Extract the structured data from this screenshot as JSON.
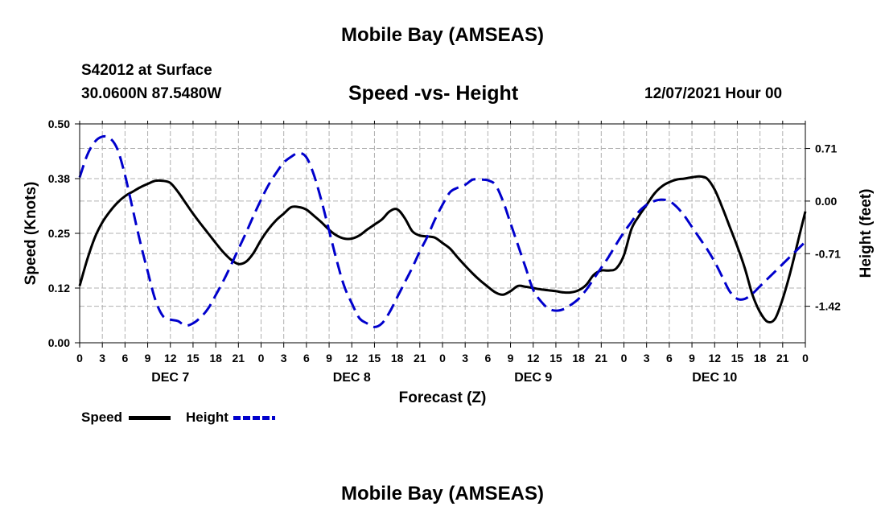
{
  "header": {
    "title": "Mobile Bay (AMSEAS)",
    "station": "S42012 at Surface",
    "coords": "30.0600N  87.5480W",
    "subtitle": "Speed -vs- Height",
    "datetime": "12/07/2021 Hour 00"
  },
  "footer": {
    "title": "Mobile Bay (AMSEAS)"
  },
  "legend": {
    "speed_label": "Speed",
    "height_label": "Height"
  },
  "colors": {
    "speed": "#000000",
    "height": "#0000cc",
    "grid": "#b0b0b0"
  },
  "chart_data": {
    "type": "line",
    "title": "Speed -vs- Height",
    "xlabel": "Forecast (Z)",
    "ylabel": "Speed (Knots)",
    "y2label": "Height (feet)",
    "xlim": [
      0,
      96
    ],
    "ylim": [
      0,
      0.5
    ],
    "y2lim": [
      -1.913,
      1.042
    ],
    "x_ticks": [
      0,
      3,
      6,
      9,
      12,
      15,
      18,
      21,
      24,
      27,
      30,
      33,
      36,
      39,
      42,
      45,
      48,
      51,
      54,
      57,
      60,
      63,
      66,
      69,
      72,
      75,
      78,
      81,
      84,
      87,
      90,
      93,
      96
    ],
    "x_tick_labels": [
      "0",
      "3",
      "6",
      "9",
      "12",
      "15",
      "18",
      "21",
      "0",
      "3",
      "6",
      "9",
      "12",
      "15",
      "18",
      "21",
      "0",
      "3",
      "6",
      "9",
      "12",
      "15",
      "18",
      "21",
      "0",
      "3",
      "6",
      "9",
      "12",
      "15",
      "18",
      "21",
      "0"
    ],
    "day_labels": [
      {
        "x": 12,
        "label": "DEC 7"
      },
      {
        "x": 36,
        "label": "DEC 8"
      },
      {
        "x": 60,
        "label": "DEC 9"
      },
      {
        "x": 84,
        "label": "DEC 10"
      }
    ],
    "y_ticks": [
      0.0,
      0.125,
      0.25,
      0.375,
      0.5
    ],
    "y_tick_labels": [
      "0.00",
      "0.12",
      "0.25",
      "0.38",
      "0.50"
    ],
    "y2_ticks": [
      0.71,
      0.0,
      -0.71,
      -1.42
    ],
    "y2_tick_labels": [
      "0.71",
      "0.00",
      "-0.71",
      "-1.42"
    ],
    "grid": true,
    "series": [
      {
        "name": "Speed",
        "axis": "left",
        "x": [
          0,
          1,
          2,
          3,
          4,
          5,
          6,
          7,
          8,
          9,
          10,
          11,
          12,
          13,
          14,
          15,
          16,
          17,
          18,
          19,
          20,
          21,
          22,
          23,
          24,
          25,
          26,
          27,
          28,
          29,
          30,
          31,
          32,
          33,
          34,
          35,
          36,
          37,
          38,
          39,
          40,
          41,
          42,
          43,
          44,
          45,
          46,
          47,
          48,
          49,
          50,
          51,
          52,
          53,
          54,
          55,
          56,
          57,
          58,
          59,
          60,
          61,
          62,
          63,
          64,
          65,
          66,
          67,
          68,
          69,
          70,
          71,
          72,
          73,
          74,
          75,
          76,
          77,
          78,
          79,
          80,
          81,
          82,
          83,
          84,
          85,
          86,
          87,
          88,
          89,
          90,
          91,
          92,
          93,
          94,
          95,
          96
        ],
        "values": [
          0.13,
          0.19,
          0.24,
          0.275,
          0.3,
          0.32,
          0.335,
          0.345,
          0.355,
          0.363,
          0.37,
          0.37,
          0.365,
          0.345,
          0.32,
          0.295,
          0.272,
          0.25,
          0.228,
          0.207,
          0.19,
          0.18,
          0.185,
          0.205,
          0.235,
          0.26,
          0.28,
          0.295,
          0.31,
          0.31,
          0.304,
          0.29,
          0.275,
          0.258,
          0.245,
          0.238,
          0.238,
          0.245,
          0.258,
          0.27,
          0.282,
          0.3,
          0.305,
          0.285,
          0.255,
          0.245,
          0.243,
          0.24,
          0.228,
          0.215,
          0.195,
          0.176,
          0.158,
          0.142,
          0.128,
          0.115,
          0.11,
          0.118,
          0.13,
          0.128,
          0.125,
          0.122,
          0.12,
          0.118,
          0.115,
          0.115,
          0.12,
          0.132,
          0.155,
          0.165,
          0.165,
          0.17,
          0.2,
          0.26,
          0.29,
          0.315,
          0.34,
          0.357,
          0.367,
          0.373,
          0.375,
          0.378,
          0.38,
          0.375,
          0.35,
          0.31,
          0.265,
          0.22,
          0.17,
          0.11,
          0.07,
          0.048,
          0.055,
          0.1,
          0.16,
          0.23,
          0.3
        ]
      },
      {
        "name": "Height",
        "axis": "right",
        "x": [
          0,
          1,
          2,
          3,
          4,
          5,
          6,
          7,
          8,
          9,
          10,
          11,
          12,
          13,
          14,
          15,
          16,
          17,
          18,
          19,
          20,
          21,
          22,
          23,
          24,
          25,
          26,
          27,
          28,
          29,
          30,
          31,
          32,
          33,
          34,
          35,
          36,
          37,
          38,
          39,
          40,
          41,
          42,
          43,
          44,
          45,
          46,
          47,
          48,
          49,
          50,
          51,
          52,
          53,
          54,
          55,
          56,
          57,
          58,
          59,
          60,
          61,
          62,
          63,
          64,
          65,
          66,
          67,
          68,
          69,
          70,
          71,
          72,
          73,
          74,
          75,
          76,
          77,
          78,
          79,
          80,
          81,
          82,
          83,
          84,
          85,
          86,
          87,
          88,
          89,
          90,
          91,
          92,
          93,
          94,
          95,
          96
        ],
        "values": [
          0.32,
          0.62,
          0.8,
          0.87,
          0.85,
          0.7,
          0.35,
          -0.1,
          -0.55,
          -0.95,
          -1.33,
          -1.55,
          -1.6,
          -1.62,
          -1.68,
          -1.65,
          -1.57,
          -1.45,
          -1.27,
          -1.08,
          -0.87,
          -0.65,
          -0.43,
          -0.2,
          0.02,
          0.22,
          0.38,
          0.52,
          0.6,
          0.65,
          0.59,
          0.35,
          0.0,
          -0.4,
          -0.8,
          -1.15,
          -1.38,
          -1.58,
          -1.65,
          -1.7,
          -1.65,
          -1.5,
          -1.3,
          -1.1,
          -0.9,
          -0.68,
          -0.48,
          -0.25,
          -0.05,
          0.12,
          0.18,
          0.22,
          0.29,
          0.29,
          0.28,
          0.22,
          0.0,
          -0.3,
          -0.6,
          -0.9,
          -1.2,
          -1.35,
          -1.45,
          -1.48,
          -1.46,
          -1.4,
          -1.32,
          -1.2,
          -1.05,
          -0.9,
          -0.75,
          -0.58,
          -0.42,
          -0.28,
          -0.14,
          -0.05,
          0.0,
          0.02,
          0.0,
          -0.08,
          -0.2,
          -0.35,
          -0.5,
          -0.65,
          -0.82,
          -1.02,
          -1.22,
          -1.32,
          -1.32,
          -1.25,
          -1.15,
          -1.05,
          -0.95,
          -0.85,
          -0.75,
          -0.65,
          -0.55
        ]
      }
    ]
  }
}
